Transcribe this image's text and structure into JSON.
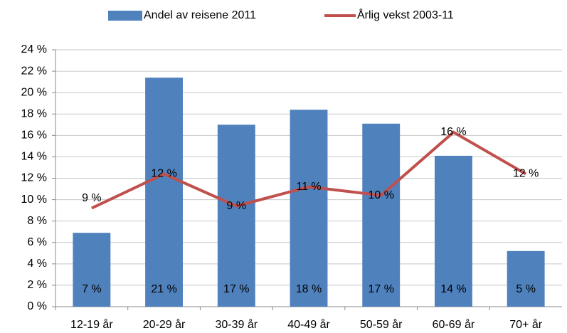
{
  "chart_data": {
    "type": "bar",
    "categories": [
      "12-19 år",
      "20-29 år",
      "30-39 år",
      "40-49 år",
      "50-59 år",
      "60-69 år",
      "70+ år"
    ],
    "series": [
      {
        "name": "Andel av reisene 2011",
        "type": "bar",
        "color": "#4f81bd",
        "values": [
          6.9,
          21.4,
          17.0,
          18.4,
          17.1,
          14.1,
          5.2
        ],
        "value_labels": [
          "7 %",
          "21 %",
          "17 %",
          "18 %",
          "17 %",
          "14 %",
          "5 %"
        ]
      },
      {
        "name": "Årlig vekst 2003-11",
        "type": "line",
        "color": "#c0504d",
        "values": [
          9.2,
          12.4,
          9.4,
          11.2,
          10.4,
          16.3,
          12.4
        ],
        "value_labels": [
          "9 %",
          "12 %",
          "9 %",
          "11 %",
          "10 %",
          "16 %",
          "12 %"
        ]
      }
    ],
    "ylim": [
      0,
      24
    ],
    "yticks": [
      {
        "value": 0,
        "label": "0 %"
      },
      {
        "value": 2,
        "label": "2 %"
      },
      {
        "value": 4,
        "label": "4 %"
      },
      {
        "value": 6,
        "label": "6 %"
      },
      {
        "value": 8,
        "label": "8 %"
      },
      {
        "value": 10,
        "label": "10 %"
      },
      {
        "value": 12,
        "label": "12 %"
      },
      {
        "value": 14,
        "label": "14 %"
      },
      {
        "value": 16,
        "label": "16 %"
      },
      {
        "value": 18,
        "label": "18 %"
      },
      {
        "value": 20,
        "label": "20 %"
      },
      {
        "value": 22,
        "label": "22 %"
      },
      {
        "value": 24,
        "label": "24 %"
      }
    ],
    "grid": true,
    "legend": "top"
  }
}
